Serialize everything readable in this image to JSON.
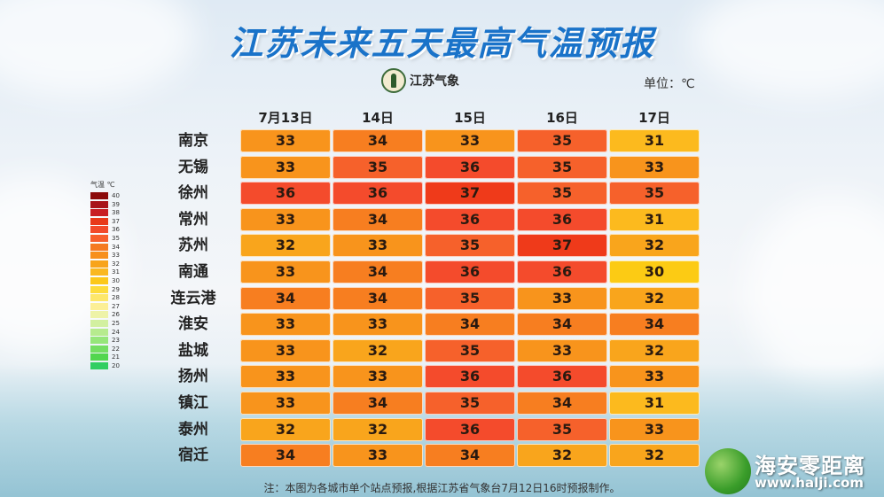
{
  "title": "江苏未来五天最高气温预报",
  "logo_text": "江苏气象",
  "unit": "单位：℃",
  "columns": [
    "7月13日",
    "14日",
    "15日",
    "16日",
    "17日"
  ],
  "rows": [
    {
      "city": "南京",
      "values": [
        33,
        34,
        33,
        35,
        31
      ]
    },
    {
      "city": "无锡",
      "values": [
        33,
        35,
        36,
        35,
        33
      ]
    },
    {
      "city": "徐州",
      "values": [
        36,
        36,
        37,
        35,
        35
      ]
    },
    {
      "city": "常州",
      "values": [
        33,
        34,
        36,
        36,
        31
      ]
    },
    {
      "city": "苏州",
      "values": [
        32,
        33,
        35,
        37,
        32
      ]
    },
    {
      "city": "南通",
      "values": [
        33,
        34,
        36,
        36,
        30
      ]
    },
    {
      "city": "连云港",
      "values": [
        34,
        34,
        35,
        33,
        32
      ]
    },
    {
      "city": "淮安",
      "values": [
        33,
        33,
        34,
        34,
        34
      ]
    },
    {
      "city": "盐城",
      "values": [
        33,
        32,
        35,
        33,
        32
      ]
    },
    {
      "city": "扬州",
      "values": [
        33,
        33,
        36,
        36,
        33
      ]
    },
    {
      "city": "镇江",
      "values": [
        33,
        34,
        35,
        34,
        31
      ]
    },
    {
      "city": "泰州",
      "values": [
        32,
        32,
        36,
        35,
        33
      ]
    },
    {
      "city": "宿迁",
      "values": [
        34,
        33,
        34,
        32,
        32
      ]
    }
  ],
  "legend": {
    "title": "气温  ℃",
    "items": [
      {
        "label": "40",
        "color": "#8b0a0a"
      },
      {
        "label": "39",
        "color": "#a8141a"
      },
      {
        "label": "38",
        "color": "#c81e24"
      },
      {
        "label": "37",
        "color": "#e8391a"
      },
      {
        "label": "36",
        "color": "#f24a2a"
      },
      {
        "label": "35",
        "color": "#f75f2c"
      },
      {
        "label": "34",
        "color": "#f57a20"
      },
      {
        "label": "33",
        "color": "#f7901c"
      },
      {
        "label": "32",
        "color": "#f8a41a"
      },
      {
        "label": "31",
        "color": "#fab820"
      },
      {
        "label": "30",
        "color": "#fcc81a"
      },
      {
        "label": "29",
        "color": "#fddc3c"
      },
      {
        "label": "28",
        "color": "#fde76a"
      },
      {
        "label": "27",
        "color": "#fcef96"
      },
      {
        "label": "26",
        "color": "#eef3a8"
      },
      {
        "label": "25",
        "color": "#d2f0a0"
      },
      {
        "label": "24",
        "color": "#b6eb8e"
      },
      {
        "label": "23",
        "color": "#96e67a"
      },
      {
        "label": "22",
        "color": "#74de62"
      },
      {
        "label": "21",
        "color": "#52d64e"
      },
      {
        "label": "20",
        "color": "#32ce62"
      }
    ]
  },
  "temp_colors": {
    "30": "#fccb14",
    "31": "#fcba1e",
    "32": "#f9a51c",
    "33": "#f8941c",
    "34": "#f77e20",
    "35": "#f6612b",
    "36": "#f44b2c",
    "37": "#ef3a1a"
  },
  "note": "注：本图为各城市单个站点预报,根据江苏省气象台7月12日16时预报制作。",
  "watermark": {
    "text": "海安零距离",
    "url": "www.halji.com"
  }
}
